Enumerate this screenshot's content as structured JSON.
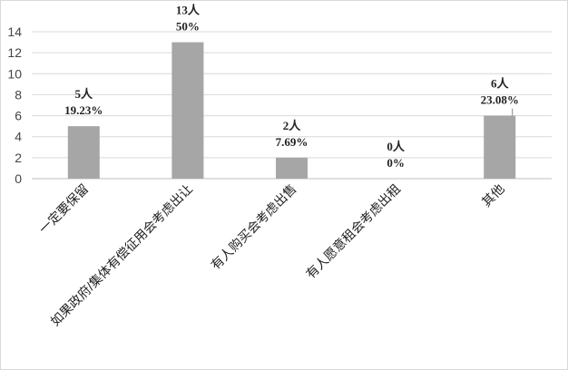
{
  "chart_data": {
    "type": "bar",
    "categories": [
      "一定要保留",
      "如果政府/集体有偿征用会考虑出让",
      "有人购买会考虑出售",
      "有人愿意租会考虑出租",
      "其他"
    ],
    "values": [
      5,
      13,
      2,
      0,
      6
    ],
    "data_labels": [
      {
        "count": "5人",
        "percent": "19.23%"
      },
      {
        "count": "13人",
        "percent": "50%"
      },
      {
        "count": "2人",
        "percent": "7.69%"
      },
      {
        "count": "0人",
        "percent": "0%"
      },
      {
        "count": "6人",
        "percent": "23.08%"
      }
    ],
    "yticks": [
      "0",
      "2",
      "4",
      "6",
      "8",
      "10",
      "12",
      "14"
    ],
    "ylim": [
      0,
      14
    ],
    "grid": true,
    "legend": "none",
    "colors": {
      "bar": "#a6a6a6",
      "grid": "#d9d9d9",
      "axis": "#bfbfbf"
    }
  }
}
